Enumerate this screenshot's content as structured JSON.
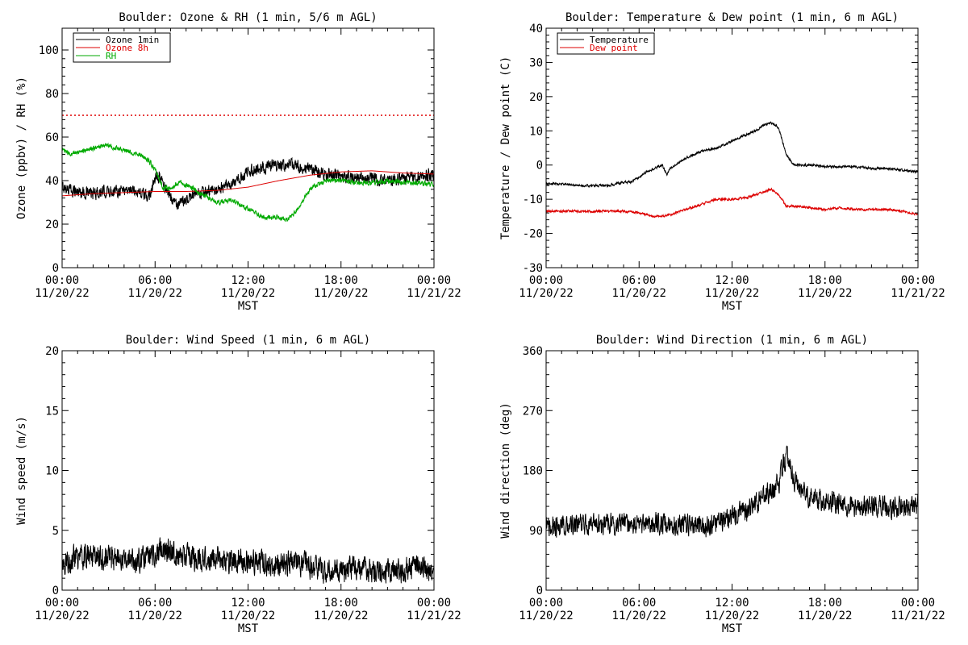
{
  "chart_data": [
    {
      "type": "line",
      "title": "Boulder: Ozone & RH (1 min, 5/6 m AGL)",
      "xlabel": "MST",
      "ylabel": "Ozone (ppbv) / RH (%)",
      "xlim": [
        0,
        24
      ],
      "ylim": [
        0,
        110
      ],
      "yticks": [
        "0",
        "20",
        "40",
        "60",
        "80",
        "100"
      ],
      "xticks": [
        {
          "hour": 0,
          "time": "00:00",
          "date": "11/20/22"
        },
        {
          "hour": 6,
          "time": "06:00",
          "date": "11/20/22"
        },
        {
          "hour": 12,
          "time": "12:00",
          "date": "11/20/22"
        },
        {
          "hour": 18,
          "time": "18:00",
          "date": "11/20/22"
        },
        {
          "hour": 24,
          "time": "00:00",
          "date": "11/21/22"
        }
      ],
      "legend_position": "top-left",
      "reference_line": {
        "y": 70,
        "color": "#dd0000",
        "style": "dotted"
      },
      "series": [
        {
          "name": "Ozone 1min",
          "color": "#000000",
          "noise": 2.5,
          "x": [
            0,
            1,
            2,
            3,
            4,
            5,
            5.5,
            6,
            6.3,
            6.7,
            7,
            7.5,
            8,
            9,
            10,
            11,
            12,
            13,
            14,
            15,
            16,
            17,
            18,
            19,
            20,
            21,
            22,
            23,
            24
          ],
          "y": [
            37,
            35,
            34,
            35,
            36,
            35,
            32,
            40,
            42,
            36,
            33,
            28,
            32,
            34,
            36,
            38,
            44,
            46,
            47,
            47,
            45,
            43,
            42,
            41,
            41,
            40,
            41,
            42,
            43
          ]
        },
        {
          "name": "Ozone 8h",
          "color": "#dd0000",
          "noise": 0,
          "x": [
            0,
            2,
            4,
            6,
            8,
            10,
            12,
            14,
            16,
            18,
            20,
            22,
            24
          ],
          "y": [
            33,
            34,
            34.5,
            35,
            35,
            35.5,
            37,
            40,
            42.5,
            44,
            44.5,
            43.5,
            43
          ]
        },
        {
          "name": "RH",
          "color": "#00aa00",
          "noise": 1,
          "x": [
            0,
            0.5,
            1,
            2,
            3,
            4,
            5,
            5.5,
            6,
            6.5,
            7,
            7.5,
            8,
            9,
            10,
            11,
            12,
            13,
            14,
            14.5,
            15,
            16,
            17,
            18,
            19,
            20,
            21,
            22,
            23,
            24
          ],
          "y": [
            54,
            52,
            53,
            55,
            56,
            54,
            52,
            50,
            45,
            37,
            36,
            39,
            38,
            34,
            30,
            31,
            27,
            23,
            23,
            22,
            25,
            36,
            40,
            40,
            39,
            39,
            40,
            39,
            39,
            38
          ]
        }
      ]
    },
    {
      "type": "line",
      "title": "Boulder: Temperature & Dew point (1 min, 6 m AGL)",
      "xlabel": "MST",
      "ylabel": "Temperature / Dew point (C)",
      "xlim": [
        0,
        24
      ],
      "ylim": [
        -30,
        40
      ],
      "yticks": [
        "-30",
        "-20",
        "-10",
        "0",
        "10",
        "20",
        "30",
        "40"
      ],
      "xticks": [
        {
          "hour": 0,
          "time": "00:00",
          "date": "11/20/22"
        },
        {
          "hour": 6,
          "time": "06:00",
          "date": "11/20/22"
        },
        {
          "hour": 12,
          "time": "12:00",
          "date": "11/20/22"
        },
        {
          "hour": 18,
          "time": "18:00",
          "date": "11/20/22"
        },
        {
          "hour": 24,
          "time": "00:00",
          "date": "11/21/22"
        }
      ],
      "legend_position": "top-left",
      "series": [
        {
          "name": "Temperature",
          "color": "#000000",
          "noise": 0.3,
          "x": [
            0,
            1,
            2,
            3,
            4,
            5,
            5.5,
            6,
            6.5,
            7,
            7.5,
            7.8,
            8,
            9,
            10,
            11,
            12,
            13,
            13.5,
            14,
            14.5,
            15,
            15.5,
            16,
            17,
            18,
            19,
            20,
            21,
            22,
            23,
            24
          ],
          "y": [
            -5.5,
            -5.5,
            -6,
            -6,
            -6,
            -5,
            -5,
            -3.5,
            -2,
            -1,
            0,
            -3,
            -1,
            2,
            4,
            5,
            7,
            9,
            10,
            11.5,
            12.5,
            11,
            3,
            0,
            0,
            -0.5,
            -0.5,
            -0.5,
            -1,
            -1,
            -1.5,
            -2
          ]
        },
        {
          "name": "Dew point",
          "color": "#dd0000",
          "noise": 0.3,
          "x": [
            0,
            1,
            2,
            3,
            4,
            5,
            6,
            7,
            7.5,
            8,
            9,
            10,
            11,
            12,
            13,
            14,
            14.5,
            15,
            15.5,
            16,
            17,
            18,
            19,
            20,
            21,
            22,
            23,
            24
          ],
          "y": [
            -13.5,
            -13.5,
            -13.5,
            -13.5,
            -13.5,
            -13.5,
            -14,
            -15,
            -15,
            -14.5,
            -13,
            -11.5,
            -10,
            -10,
            -9.5,
            -8,
            -7,
            -8.5,
            -12,
            -12,
            -12.5,
            -13,
            -12.5,
            -13,
            -13,
            -13,
            -13.5,
            -14.5
          ]
        }
      ]
    },
    {
      "type": "line",
      "title": "Boulder: Wind Speed (1 min, 6 m AGL)",
      "xlabel": "MST",
      "ylabel": "Wind speed (m/s)",
      "xlim": [
        0,
        24
      ],
      "ylim": [
        0,
        20
      ],
      "yticks": [
        "0",
        "5",
        "10",
        "15",
        "20"
      ],
      "xticks": [
        {
          "hour": 0,
          "time": "00:00",
          "date": "11/20/22"
        },
        {
          "hour": 6,
          "time": "06:00",
          "date": "11/20/22"
        },
        {
          "hour": 12,
          "time": "12:00",
          "date": "11/20/22"
        },
        {
          "hour": 18,
          "time": "18:00",
          "date": "11/20/22"
        },
        {
          "hour": 24,
          "time": "00:00",
          "date": "11/21/22"
        }
      ],
      "series": [
        {
          "name": "",
          "color": "#000000",
          "noise": 0.9,
          "x": [
            0,
            1,
            2,
            3,
            4,
            5,
            6,
            6.5,
            7,
            7.5,
            8,
            9,
            10,
            11,
            12,
            13,
            14,
            15,
            16,
            17,
            18,
            19,
            20,
            21,
            22,
            23,
            24
          ],
          "y": [
            2.2,
            2.8,
            2.8,
            2.7,
            2.6,
            2.5,
            3,
            3.5,
            3.2,
            2.8,
            2.8,
            2.6,
            2.6,
            2.4,
            2.5,
            2.2,
            2,
            2.5,
            2,
            1.6,
            1.5,
            1.8,
            1.8,
            1.5,
            1.6,
            2.0,
            1.6
          ]
        }
      ]
    },
    {
      "type": "line",
      "title": "Boulder: Wind Direction (1 min, 6 m AGL)",
      "xlabel": "MST",
      "ylabel": "Wind direction (deg)",
      "xlim": [
        0,
        24
      ],
      "ylim": [
        0,
        360
      ],
      "yticks": [
        "0",
        "90",
        "180",
        "270",
        "360"
      ],
      "xticks": [
        {
          "hour": 0,
          "time": "00:00",
          "date": "11/20/22"
        },
        {
          "hour": 6,
          "time": "06:00",
          "date": "11/20/22"
        },
        {
          "hour": 12,
          "time": "12:00",
          "date": "11/20/22"
        },
        {
          "hour": 18,
          "time": "18:00",
          "date": "11/20/22"
        },
        {
          "hour": 24,
          "time": "00:00",
          "date": "11/21/22"
        }
      ],
      "series": [
        {
          "name": "",
          "color": "#000000",
          "noise": 14,
          "x": [
            0,
            1,
            2,
            3,
            4,
            5,
            6,
            7,
            8,
            9,
            10,
            11,
            12,
            13,
            14,
            14.5,
            15,
            15.3,
            15.6,
            16,
            16.5,
            17,
            18,
            19,
            20,
            21,
            22,
            23,
            24
          ],
          "y": [
            95,
            95,
            98,
            100,
            100,
            100,
            100,
            100,
            100,
            100,
            95,
            100,
            110,
            120,
            140,
            150,
            160,
            190,
            200,
            165,
            150,
            140,
            135,
            130,
            125,
            125,
            125,
            125,
            130
          ]
        }
      ]
    }
  ]
}
